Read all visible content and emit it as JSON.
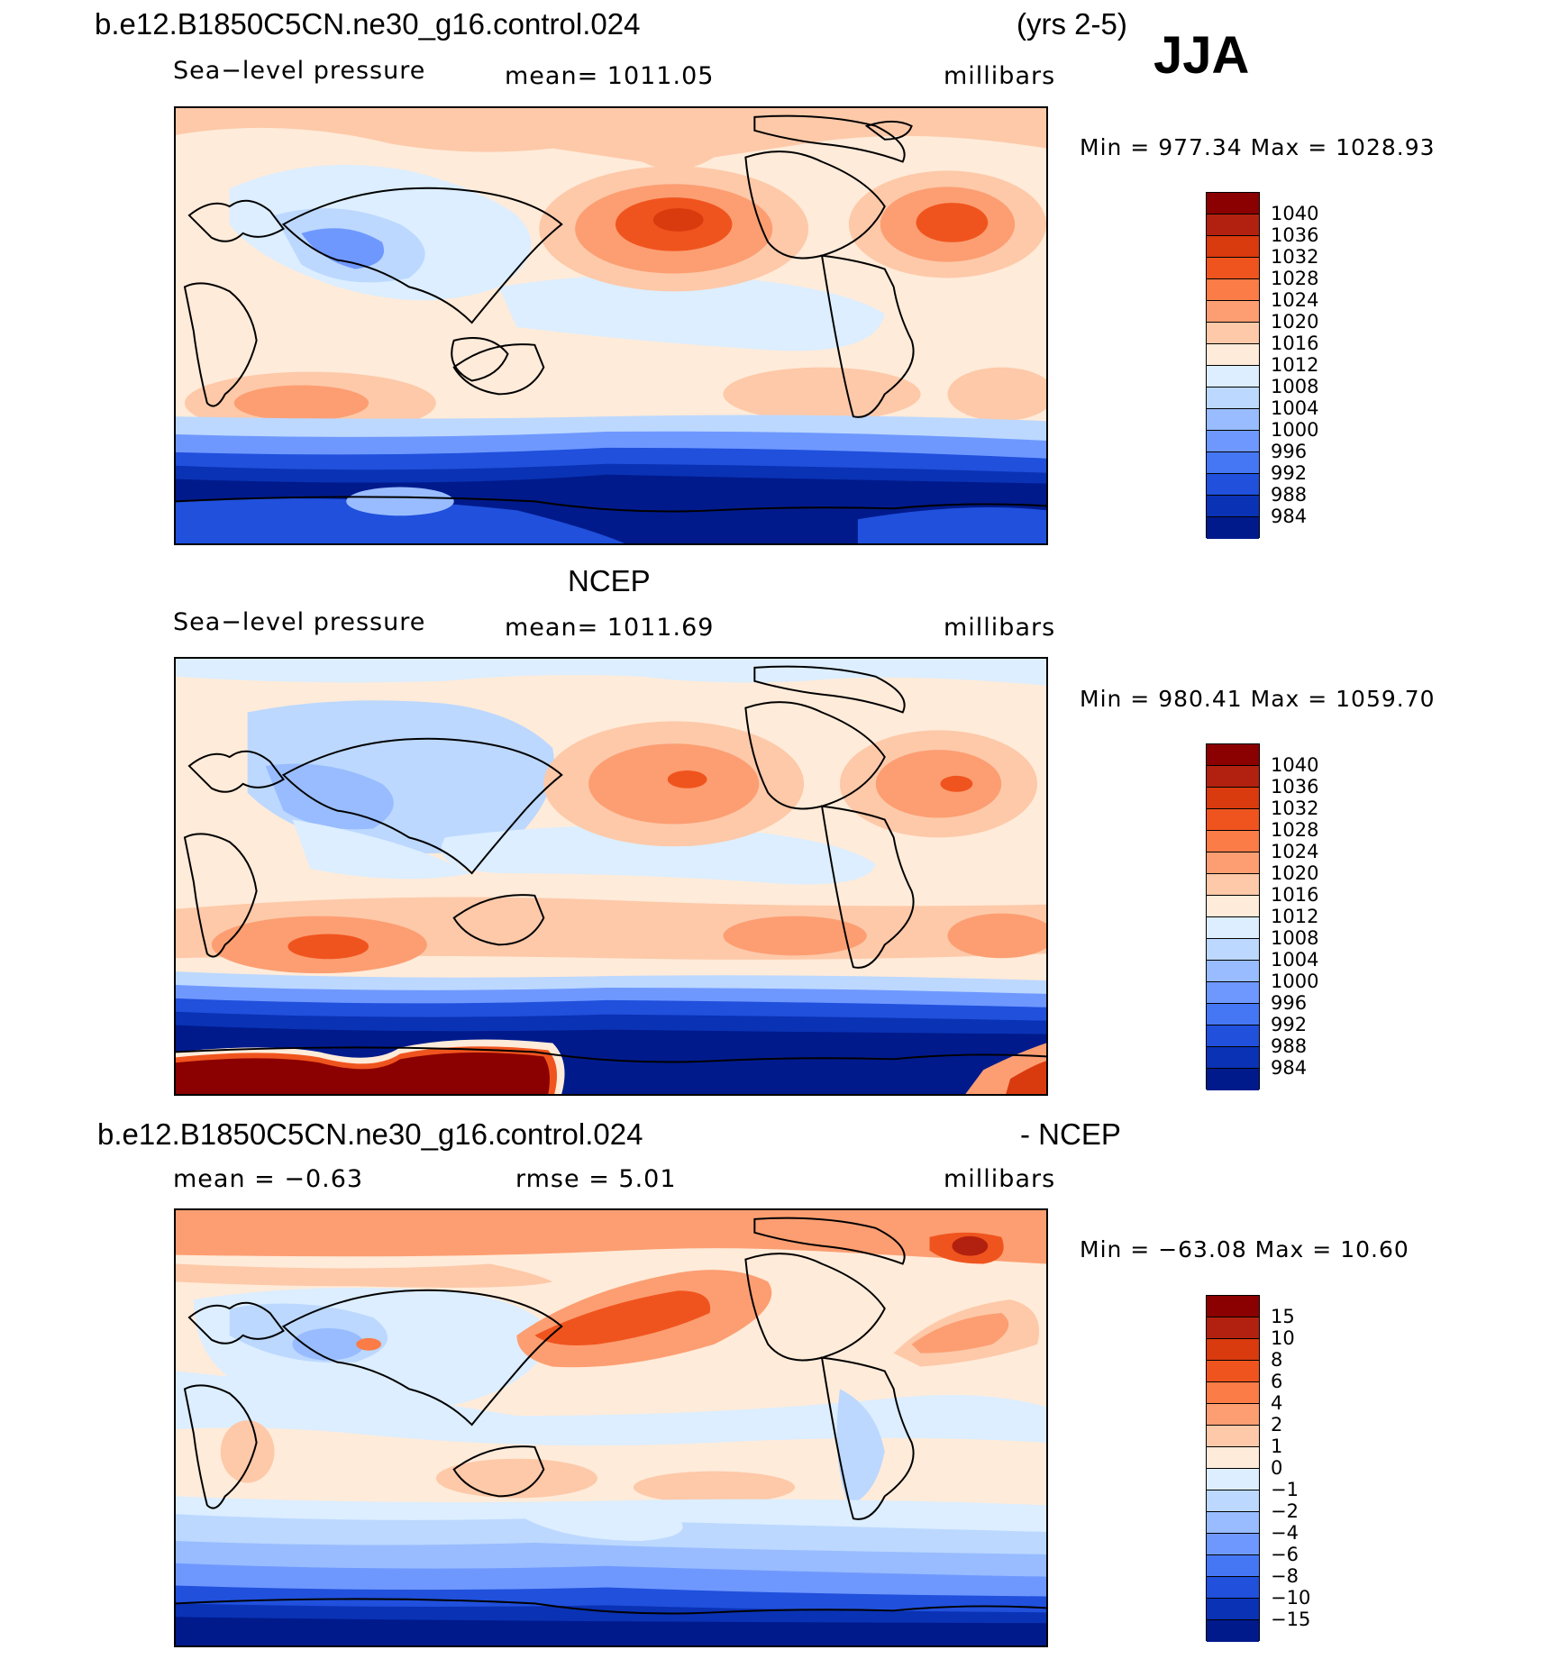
{
  "header": {
    "case_name": "b.e12.B1850C5CN.ne30_g16.control.024",
    "years": "(yrs 2-5)",
    "season": "JJA"
  },
  "panels": [
    {
      "title": "",
      "variable": "Sea−level pressure",
      "stat": "mean=  1011.05",
      "units": "millibars",
      "minmax": "Min  =  977.34  Max  =  1028.93"
    },
    {
      "title": "NCEP",
      "variable": "Sea−level pressure",
      "stat": "mean=  1011.69",
      "units": "millibars",
      "minmax": "Min  =  980.41  Max  =  1059.70"
    },
    {
      "title_left": "b.e12.B1850C5CN.ne30_g16.control.024",
      "title_right": "- NCEP",
      "variable": "mean  =     −0.63",
      "stat": "rmse  =      5.01",
      "units": "millibars",
      "minmax": "Min  =  −63.08  Max  =     10.60"
    }
  ],
  "colorbars": {
    "pressure": {
      "labels": [
        "1040",
        "1036",
        "1032",
        "1028",
        "1024",
        "1020",
        "1016",
        "1012",
        "1008",
        "1004",
        "1000",
        "996",
        "992",
        "988",
        "984"
      ],
      "colors": [
        "#8b0000",
        "#b2210f",
        "#d93a0e",
        "#f0541e",
        "#fb7c47",
        "#fc9e72",
        "#fdc9a9",
        "#ffebd9",
        "#dceeff",
        "#bcd8ff",
        "#98bcff",
        "#6f98ff",
        "#4577f5",
        "#2050dc",
        "#0a32b4",
        "#001a8c"
      ]
    },
    "difference": {
      "labels": [
        "15",
        "10",
        "8",
        "6",
        "4",
        "2",
        "1",
        "0",
        "−1",
        "−2",
        "−4",
        "−6",
        "−8",
        "−10",
        "−15"
      ],
      "colors": [
        "#8b0000",
        "#b2210f",
        "#d93a0e",
        "#f0541e",
        "#fb7c47",
        "#fc9e72",
        "#fdc9a9",
        "#ffebd9",
        "#dceeff",
        "#bcd8ff",
        "#98bcff",
        "#6f98ff",
        "#4577f5",
        "#2050dc",
        "#0a32b4",
        "#001a8c"
      ]
    }
  }
}
